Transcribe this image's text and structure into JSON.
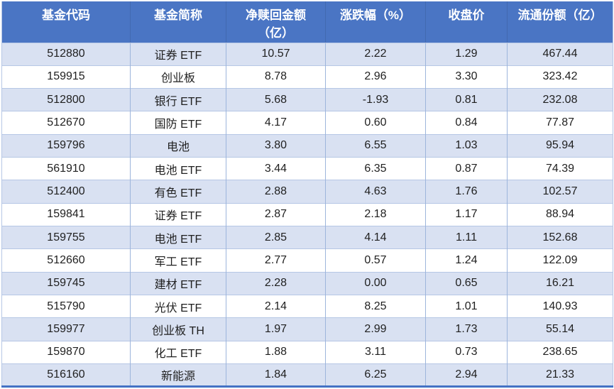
{
  "chart_data": {
    "type": "table",
    "title": "",
    "columns": [
      "基金代码",
      "基金简称",
      "净赎回金额（亿）",
      "涨跌幅（%）",
      "收盘价",
      "流通份额（亿）"
    ],
    "header_display_lines": [
      [
        "基金代码"
      ],
      [
        "基金简称"
      ],
      [
        "净赎回金额",
        "（亿）"
      ],
      [
        "涨跌幅（%）"
      ],
      [
        "收盘价"
      ],
      [
        "流通份额（亿）"
      ]
    ],
    "rows": [
      [
        "512880",
        "证券 ETF",
        "10.57",
        "2.22",
        "1.29",
        "467.44"
      ],
      [
        "159915",
        "创业板",
        "8.78",
        "2.96",
        "3.30",
        "323.42"
      ],
      [
        "512800",
        "银行 ETF",
        "5.68",
        "-1.93",
        "0.81",
        "232.08"
      ],
      [
        "512670",
        "国防 ETF",
        "4.17",
        "0.60",
        "0.84",
        "77.87"
      ],
      [
        "159796",
        "电池",
        "3.80",
        "6.55",
        "1.03",
        "95.94"
      ],
      [
        "561910",
        "电池 ETF",
        "3.44",
        "6.35",
        "0.87",
        "74.39"
      ],
      [
        "512400",
        "有色 ETF",
        "2.88",
        "4.63",
        "1.76",
        "102.57"
      ],
      [
        "159841",
        "证券 ETF",
        "2.87",
        "2.18",
        "1.17",
        "88.94"
      ],
      [
        "159755",
        "电池 ETF",
        "2.85",
        "4.14",
        "1.11",
        "152.68"
      ],
      [
        "512660",
        "军工 ETF",
        "2.77",
        "0.57",
        "1.24",
        "122.09"
      ],
      [
        "159745",
        "建材 ETF",
        "2.28",
        "0.00",
        "0.65",
        "16.21"
      ],
      [
        "515790",
        "光伏 ETF",
        "2.14",
        "8.25",
        "1.01",
        "140.93"
      ],
      [
        "159977",
        "创业板 TH",
        "1.97",
        "2.99",
        "1.73",
        "55.14"
      ],
      [
        "159870",
        "化工 ETF",
        "1.88",
        "3.11",
        "0.73",
        "238.65"
      ],
      [
        "516160",
        "新能源",
        "1.84",
        "6.25",
        "2.94",
        "21.33"
      ]
    ],
    "layout_hints": {
      "banded_rows": "odd rows light blue, even rows white",
      "grid": "on",
      "header_position": "top"
    }
  },
  "colors": {
    "header_bg": "#4a75c4",
    "header_text": "#ffffff",
    "band_row_bg": "#d9e1f2",
    "row_bg": "#ffffff",
    "grid_v": "#9db5dc",
    "grid_h": "#b6c7e5",
    "bottom_border": "#4472c4",
    "text": "#1f1f1f"
  }
}
